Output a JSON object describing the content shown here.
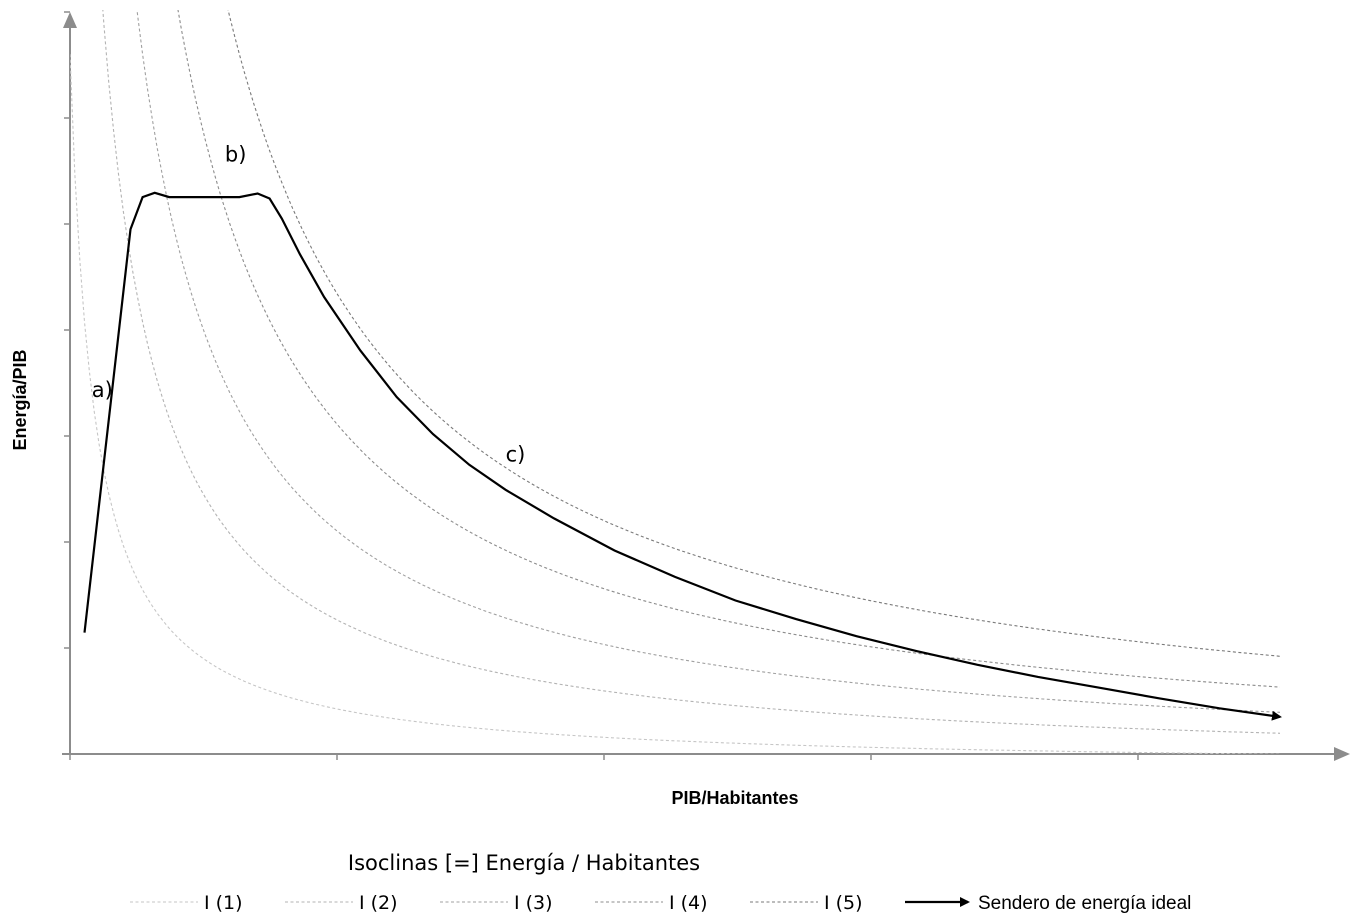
{
  "chart_data": {
    "type": "line",
    "title": "",
    "xlabel": "PIB/Habitantes",
    "ylabel": "Energía/PIB",
    "xlim": [
      0,
      1
    ],
    "ylim": [
      0,
      1
    ],
    "x_tick_count": 5,
    "y_tick_count": 7,
    "tick_labels_shown": false,
    "grid": false,
    "legend_title": "Isoclinas [=] Energía / Habitantes",
    "legend_position": "bottom",
    "isoclines": [
      {
        "name": "I (1)",
        "color": "#c6c6c6",
        "k": 0.02
      },
      {
        "name": "I (2)",
        "color": "#b3b3b3",
        "k": 0.05
      },
      {
        "name": "I (3)",
        "color": "#a0a0a0",
        "k": 0.08
      },
      {
        "name": "I (4)",
        "color": "#8c8c8c",
        "k": 0.116
      },
      {
        "name": "I (5)",
        "color": "#7a7a7a",
        "k": 0.16
      }
    ],
    "path_series": {
      "name": "Sendero de energía ideal",
      "color": "#000000",
      "points": [
        [
          0.012,
          0.17
        ],
        [
          0.05,
          0.735
        ],
        [
          0.06,
          0.78
        ],
        [
          0.07,
          0.786
        ],
        [
          0.082,
          0.78
        ],
        [
          0.1,
          0.78
        ],
        [
          0.12,
          0.78
        ],
        [
          0.14,
          0.78
        ],
        [
          0.155,
          0.785
        ],
        [
          0.165,
          0.778
        ],
        [
          0.175,
          0.75
        ],
        [
          0.19,
          0.7
        ],
        [
          0.21,
          0.64
        ],
        [
          0.24,
          0.565
        ],
        [
          0.27,
          0.5
        ],
        [
          0.3,
          0.448
        ],
        [
          0.33,
          0.405
        ],
        [
          0.36,
          0.37
        ],
        [
          0.4,
          0.33
        ],
        [
          0.45,
          0.285
        ],
        [
          0.5,
          0.248
        ],
        [
          0.55,
          0.215
        ],
        [
          0.6,
          0.189
        ],
        [
          0.65,
          0.165
        ],
        [
          0.7,
          0.144
        ],
        [
          0.75,
          0.125
        ],
        [
          0.8,
          0.108
        ],
        [
          0.85,
          0.093
        ],
        [
          0.9,
          0.078
        ],
        [
          0.95,
          0.064
        ],
        [
          1.0,
          0.052
        ]
      ]
    },
    "annotations": [
      {
        "text": "a)",
        "x": 0.018,
        "y": 0.5
      },
      {
        "text": "b)",
        "x": 0.128,
        "y": 0.83
      },
      {
        "text": "c)",
        "x": 0.36,
        "y": 0.41
      }
    ]
  }
}
